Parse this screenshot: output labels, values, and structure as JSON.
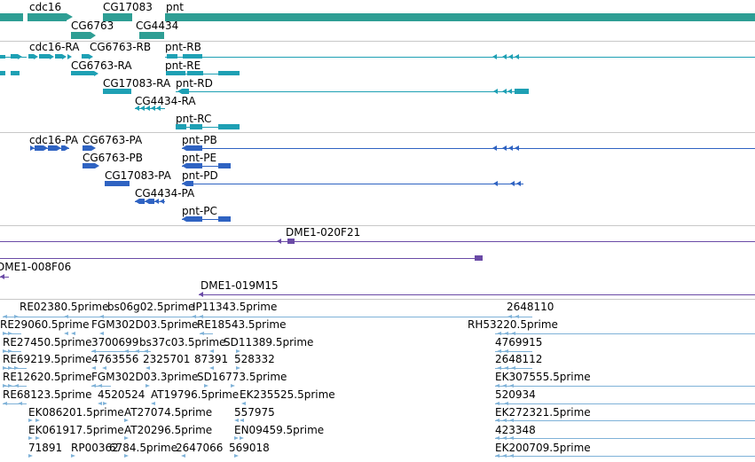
{
  "colors": {
    "gene": "#2e9e94",
    "transcript": "#1ea0b4",
    "protein": "#2f63c2",
    "clone": "#6a4aa6",
    "est": "#7fb2d8"
  },
  "tracks": {
    "genes": {
      "labels": [
        "cdc16",
        "CG17083",
        "pnt",
        "CG6763",
        "CG4434"
      ]
    },
    "transcripts": {
      "labels": [
        "cdc16-RA",
        "CG6763-RB",
        "pnt-RB",
        "CG6763-RA",
        "pnt-RE",
        "CG17083-RA",
        "pnt-RD",
        "CG4434-RA",
        "pnt-RC"
      ]
    },
    "proteins": {
      "labels": [
        "cdc16-PA",
        "CG6763-PA",
        "pnt-PB",
        "CG6763-PB",
        "pnt-PE",
        "CG17083-PA",
        "pnt-PD",
        "CG4434-PA",
        "pnt-PC"
      ]
    },
    "clones": {
      "labels": [
        "DME1-020F21",
        "DME1-008F06",
        "DME1-019M15"
      ]
    },
    "ests": {
      "labels": [
        "RE02380.5prime",
        "bs06g02.5prime",
        "IP11343.5prime",
        "2648110",
        "RE29060.5prime",
        "FGM302D03.5prime",
        "RE18543.5prime",
        "RH53220.5prime",
        "RE27450.5prime",
        "3700699",
        "bs37c03.5prime",
        "SD11389.5prime",
        "4769915",
        "RE69219.5prime",
        "4763556",
        "2325701",
        "87391",
        "528332",
        "2648112",
        "RE12620.5prime",
        "FGM302D03.3prime",
        "SD16773.5prime",
        "EK307555.5prime",
        "RE68123.5prime",
        "4520524",
        "AT19796.5prime",
        "EK235525.5prime",
        "520934",
        "EK086201.5prime",
        "AT27074.5prime",
        "557975",
        "EK272321.5prime",
        "EK061917.5prime",
        "AT20296.5prime",
        "EN09459.5prime",
        "423348",
        "71891",
        "RP00362",
        "6784.5prime",
        "2647066",
        "569018",
        "EK200709.5prime"
      ]
    }
  }
}
